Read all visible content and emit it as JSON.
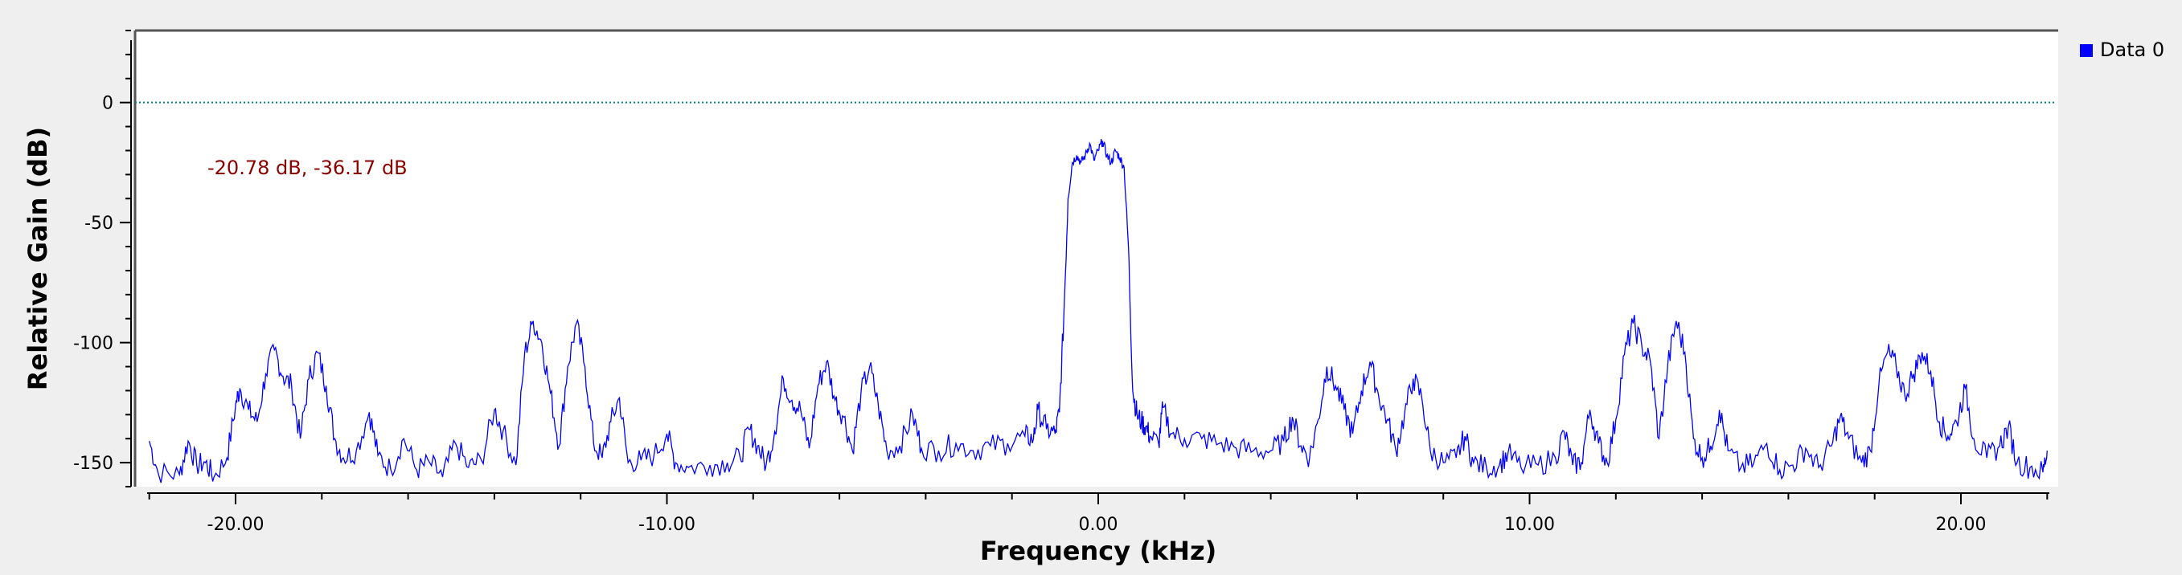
{
  "chart_data": {
    "type": "line",
    "xlabel": "Frequency (kHz)",
    "ylabel": "Relative Gain (dB)",
    "xlim": [
      -22.05,
      22.05
    ],
    "ylim": [
      -160,
      30
    ],
    "x_ticks": [
      -20,
      -10,
      0,
      10,
      20
    ],
    "x_tick_labels": [
      "-20.00",
      "-10.00",
      "0.00",
      "10.00",
      "20.00"
    ],
    "y_ticks": [
      0,
      -50,
      -100,
      -150
    ],
    "y_tick_labels": [
      "0",
      "-50",
      "-100",
      "-150"
    ],
    "reference_line": {
      "y": 0,
      "color": "#008080",
      "style": "dotted"
    },
    "marker_readout": {
      "text": "-20.78 dB, -36.17 dB",
      "color": "#8b0000"
    },
    "series": [
      {
        "name": "Data 0",
        "color": "#0000ff",
        "points": [
          [
            -22.0,
            -141
          ],
          [
            -21.8,
            -154
          ],
          [
            -21.3,
            -155
          ],
          [
            -21.1,
            -141
          ],
          [
            -20.9,
            -151
          ],
          [
            -20.7,
            -150
          ],
          [
            -20.5,
            -156
          ],
          [
            -20.2,
            -148
          ],
          [
            -20.0,
            -126
          ],
          [
            -19.9,
            -119
          ],
          [
            -19.7,
            -128
          ],
          [
            -19.5,
            -133
          ],
          [
            -19.3,
            -113
          ],
          [
            -19.1,
            -103
          ],
          [
            -18.9,
            -114
          ],
          [
            -18.7,
            -118
          ],
          [
            -18.5,
            -140
          ],
          [
            -18.3,
            -115
          ],
          [
            -18.1,
            -104
          ],
          [
            -17.9,
            -118
          ],
          [
            -17.7,
            -140
          ],
          [
            -17.5,
            -148
          ],
          [
            -17.2,
            -145
          ],
          [
            -16.9,
            -129
          ],
          [
            -16.7,
            -147
          ],
          [
            -16.4,
            -153
          ],
          [
            -16.1,
            -140
          ],
          [
            -15.8,
            -153
          ],
          [
            -15.5,
            -150
          ],
          [
            -15.2,
            -156
          ],
          [
            -14.9,
            -142
          ],
          [
            -14.6,
            -152
          ],
          [
            -14.3,
            -149
          ],
          [
            -14.0,
            -128
          ],
          [
            -13.8,
            -137
          ],
          [
            -13.5,
            -151
          ],
          [
            -13.3,
            -105
          ],
          [
            -13.1,
            -91
          ],
          [
            -12.9,
            -100
          ],
          [
            -12.7,
            -121
          ],
          [
            -12.5,
            -143
          ],
          [
            -12.3,
            -110
          ],
          [
            -12.1,
            -92
          ],
          [
            -11.9,
            -110
          ],
          [
            -11.7,
            -142
          ],
          [
            -11.5,
            -148
          ],
          [
            -11.3,
            -133
          ],
          [
            -11.1,
            -123
          ],
          [
            -10.9,
            -150
          ],
          [
            -10.6,
            -149
          ],
          [
            -10.3,
            -147
          ],
          [
            -10.0,
            -138
          ],
          [
            -9.8,
            -150
          ],
          [
            -9.5,
            -152
          ],
          [
            -9.0,
            -151
          ],
          [
            -8.6,
            -150
          ],
          [
            -8.3,
            -148
          ],
          [
            -8.1,
            -136
          ],
          [
            -7.9,
            -143
          ],
          [
            -7.7,
            -151
          ],
          [
            -7.5,
            -137
          ],
          [
            -7.3,
            -115
          ],
          [
            -7.1,
            -124
          ],
          [
            -6.9,
            -128
          ],
          [
            -6.7,
            -144
          ],
          [
            -6.5,
            -118
          ],
          [
            -6.3,
            -108
          ],
          [
            -6.1,
            -124
          ],
          [
            -5.9,
            -131
          ],
          [
            -5.7,
            -145
          ],
          [
            -5.5,
            -121
          ],
          [
            -5.3,
            -110
          ],
          [
            -5.1,
            -126
          ],
          [
            -4.9,
            -145
          ],
          [
            -4.6,
            -143
          ],
          [
            -4.3,
            -130
          ],
          [
            -4.1,
            -144
          ],
          [
            -3.7,
            -145
          ],
          [
            -3.3,
            -142
          ],
          [
            -2.9,
            -145
          ],
          [
            -2.5,
            -143
          ],
          [
            -2.1,
            -142
          ],
          [
            -1.7,
            -139
          ],
          [
            -1.5,
            -140
          ],
          [
            -1.4,
            -128
          ],
          [
            -1.2,
            -136
          ],
          [
            -1.0,
            -138
          ],
          [
            -0.9,
            -129
          ],
          [
            -0.8,
            -90
          ],
          [
            -0.7,
            -40
          ],
          [
            -0.6,
            -25
          ],
          [
            -0.5,
            -22
          ],
          [
            -0.4,
            -25
          ],
          [
            -0.3,
            -22
          ],
          [
            -0.2,
            -17
          ],
          [
            -0.1,
            -24
          ],
          [
            0.0,
            -20
          ],
          [
            0.1,
            -16
          ],
          [
            0.2,
            -22
          ],
          [
            0.3,
            -25
          ],
          [
            0.4,
            -20
          ],
          [
            0.5,
            -23
          ],
          [
            0.6,
            -27
          ],
          [
            0.7,
            -60
          ],
          [
            0.8,
            -120
          ],
          [
            0.9,
            -130
          ],
          [
            1.0,
            -133
          ],
          [
            1.1,
            -135
          ],
          [
            1.2,
            -139
          ],
          [
            1.4,
            -142
          ],
          [
            1.5,
            -127
          ],
          [
            1.7,
            -138
          ],
          [
            2.0,
            -140
          ],
          [
            2.4,
            -140
          ],
          [
            2.8,
            -142
          ],
          [
            3.2,
            -144
          ],
          [
            3.6,
            -145
          ],
          [
            4.0,
            -145
          ],
          [
            4.3,
            -141
          ],
          [
            4.5,
            -131
          ],
          [
            4.7,
            -143
          ],
          [
            4.9,
            -148
          ],
          [
            5.1,
            -132
          ],
          [
            5.3,
            -110
          ],
          [
            5.5,
            -118
          ],
          [
            5.7,
            -128
          ],
          [
            5.9,
            -138
          ],
          [
            6.1,
            -120
          ],
          [
            6.3,
            -108
          ],
          [
            6.5,
            -122
          ],
          [
            6.7,
            -132
          ],
          [
            6.9,
            -145
          ],
          [
            7.1,
            -130
          ],
          [
            7.3,
            -115
          ],
          [
            7.5,
            -123
          ],
          [
            7.7,
            -145
          ],
          [
            8.0,
            -150
          ],
          [
            8.3,
            -148
          ],
          [
            8.5,
            -139
          ],
          [
            8.7,
            -150
          ],
          [
            9.0,
            -152
          ],
          [
            9.3,
            -151
          ],
          [
            9.5,
            -146
          ],
          [
            9.8,
            -152
          ],
          [
            10.2,
            -151
          ],
          [
            10.6,
            -148
          ],
          [
            10.8,
            -137
          ],
          [
            11.0,
            -151
          ],
          [
            11.2,
            -150
          ],
          [
            11.4,
            -128
          ],
          [
            11.6,
            -142
          ],
          [
            11.8,
            -150
          ],
          [
            12.0,
            -132
          ],
          [
            12.2,
            -105
          ],
          [
            12.4,
            -92
          ],
          [
            12.6,
            -101
          ],
          [
            12.8,
            -108
          ],
          [
            13.0,
            -140
          ],
          [
            13.2,
            -110
          ],
          [
            13.4,
            -91
          ],
          [
            13.6,
            -104
          ],
          [
            13.8,
            -140
          ],
          [
            14.0,
            -148
          ],
          [
            14.2,
            -143
          ],
          [
            14.4,
            -128
          ],
          [
            14.6,
            -145
          ],
          [
            14.9,
            -152
          ],
          [
            15.2,
            -150
          ],
          [
            15.5,
            -142
          ],
          [
            15.8,
            -153
          ],
          [
            16.1,
            -151
          ],
          [
            16.4,
            -144
          ],
          [
            16.7,
            -152
          ],
          [
            17.0,
            -143
          ],
          [
            17.2,
            -131
          ],
          [
            17.4,
            -140
          ],
          [
            17.7,
            -150
          ],
          [
            17.9,
            -145
          ],
          [
            18.1,
            -117
          ],
          [
            18.3,
            -104
          ],
          [
            18.5,
            -110
          ],
          [
            18.7,
            -122
          ],
          [
            18.9,
            -113
          ],
          [
            19.1,
            -104
          ],
          [
            19.3,
            -112
          ],
          [
            19.5,
            -133
          ],
          [
            19.7,
            -139
          ],
          [
            19.9,
            -133
          ],
          [
            20.1,
            -119
          ],
          [
            20.3,
            -140
          ],
          [
            20.6,
            -148
          ],
          [
            20.9,
            -143
          ],
          [
            21.1,
            -135
          ],
          [
            21.3,
            -150
          ],
          [
            21.6,
            -152
          ],
          [
            21.9,
            -154
          ],
          [
            22.0,
            -145
          ]
        ]
      }
    ],
    "legend": {
      "placement": "top-right",
      "entries": [
        "Data 0"
      ]
    },
    "grid": false
  }
}
